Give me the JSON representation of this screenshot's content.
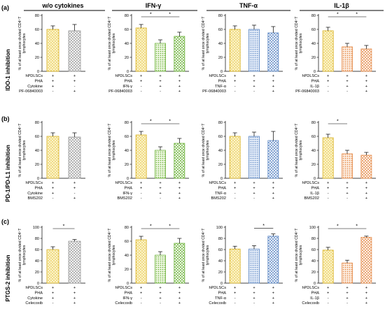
{
  "column_headers": [
    "w/o cytokines",
    "IFN-γ",
    "TNF-α",
    "IL-1β"
  ],
  "rows": [
    {
      "letter": "(a)",
      "label": "IDO-1 inhibition",
      "inhibitor": "PF-06840003"
    },
    {
      "letter": "(b)",
      "label": "PD-1/PD-L1 inhibition",
      "inhibitor": "BMS202"
    },
    {
      "letter": "(c)",
      "label": "PTGS-2 inhibition",
      "inhibitor": "Celecoxib"
    }
  ],
  "ylabel_line1": "% of at least once divided CD4⁺T",
  "ylabel_line2": "lymphocytes",
  "condition_labels": {
    "cells": "hPDLSCs",
    "pha": "PHA",
    "cytokine_generic": "Cytokine"
  },
  "signs": {
    "plus": "+",
    "minus": "-"
  },
  "significance_mark": "*",
  "colors": {
    "none": "#e8c83a",
    "ifn": "#7fbf4a",
    "tnf": "#6a93cc",
    "il1b": "#e89a60",
    "neutral": "#9a9a9a"
  },
  "chart_data": [
    {
      "type": "bar",
      "row": 0,
      "col": 0,
      "ylim": [
        0,
        80
      ],
      "yticks": [
        0,
        20,
        40,
        60,
        80
      ],
      "cytokine": "Cytokine",
      "values": [
        60,
        58
      ],
      "errors": [
        5,
        9
      ],
      "significance": []
    },
    {
      "type": "bar",
      "row": 0,
      "col": 1,
      "ylim": [
        0,
        80
      ],
      "yticks": [
        0,
        20,
        40,
        60,
        80
      ],
      "cytokine": "IFN-γ",
      "values": [
        62,
        40,
        50
      ],
      "errors": [
        5,
        5,
        6
      ],
      "significance": [
        [
          0,
          1
        ],
        [
          1,
          2
        ]
      ]
    },
    {
      "type": "bar",
      "row": 0,
      "col": 2,
      "ylim": [
        0,
        80
      ],
      "yticks": [
        0,
        20,
        40,
        60,
        80
      ],
      "cytokine": "TNF-α",
      "values": [
        60,
        60,
        55
      ],
      "errors": [
        5,
        6,
        9
      ],
      "significance": []
    },
    {
      "type": "bar",
      "row": 0,
      "col": 3,
      "ylim": [
        0,
        80
      ],
      "yticks": [
        0,
        20,
        40,
        60,
        80
      ],
      "cytokine": "IL-1β",
      "values": [
        58,
        35,
        32
      ],
      "errors": [
        5,
        5,
        5
      ],
      "significance": [
        [
          0,
          1
        ],
        [
          1,
          2
        ]
      ]
    },
    {
      "type": "bar",
      "row": 1,
      "col": 0,
      "ylim": [
        0,
        80
      ],
      "yticks": [
        0,
        20,
        40,
        60,
        80
      ],
      "cytokine": "Cytokine",
      "values": [
        60,
        59
      ],
      "errors": [
        5,
        6
      ],
      "significance": []
    },
    {
      "type": "bar",
      "row": 1,
      "col": 1,
      "ylim": [
        0,
        80
      ],
      "yticks": [
        0,
        20,
        40,
        60,
        80
      ],
      "cytokine": "IFN-γ",
      "values": [
        62,
        40,
        50
      ],
      "errors": [
        5,
        5,
        7
      ],
      "significance": [
        [
          0,
          1
        ],
        [
          1,
          2
        ]
      ]
    },
    {
      "type": "bar",
      "row": 1,
      "col": 2,
      "ylim": [
        0,
        80
      ],
      "yticks": [
        0,
        20,
        40,
        60,
        80
      ],
      "cytokine": "TNF-α",
      "values": [
        60,
        60,
        54
      ],
      "errors": [
        5,
        6,
        13
      ],
      "significance": []
    },
    {
      "type": "bar",
      "row": 1,
      "col": 3,
      "ylim": [
        0,
        80
      ],
      "yticks": [
        0,
        20,
        40,
        60,
        80
      ],
      "cytokine": "IL-1β",
      "values": [
        58,
        35,
        33
      ],
      "errors": [
        5,
        5,
        4
      ],
      "significance": [
        [
          0,
          1
        ]
      ]
    },
    {
      "type": "bar",
      "row": 2,
      "col": 0,
      "ylim": [
        0,
        100
      ],
      "yticks": [
        0,
        20,
        40,
        60,
        80,
        100
      ],
      "cytokine": "Cytokine",
      "values": [
        60,
        75
      ],
      "errors": [
        5,
        3
      ],
      "significance": [
        [
          0,
          1
        ]
      ]
    },
    {
      "type": "bar",
      "row": 2,
      "col": 1,
      "ylim": [
        0,
        80
      ],
      "yticks": [
        0,
        20,
        40,
        60,
        80
      ],
      "cytokine": "IFN-γ",
      "values": [
        62,
        40,
        57
      ],
      "errors": [
        5,
        5,
        7
      ],
      "significance": [
        [
          0,
          1
        ],
        [
          1,
          2
        ]
      ]
    },
    {
      "type": "bar",
      "row": 2,
      "col": 2,
      "ylim": [
        0,
        100
      ],
      "yticks": [
        0,
        20,
        40,
        60,
        80,
        100
      ],
      "cytokine": "TNF-α",
      "values": [
        61,
        61,
        84
      ],
      "errors": [
        5,
        6,
        4
      ],
      "significance": [
        [
          1,
          2
        ]
      ]
    },
    {
      "type": "bar",
      "row": 2,
      "col": 3,
      "ylim": [
        0,
        100
      ],
      "yticks": [
        0,
        20,
        40,
        60,
        80,
        100
      ],
      "cytokine": "IL-1β",
      "values": [
        59,
        36,
        82
      ],
      "errors": [
        5,
        5,
        2
      ],
      "significance": [
        [
          0,
          1
        ],
        [
          1,
          2
        ]
      ]
    }
  ]
}
